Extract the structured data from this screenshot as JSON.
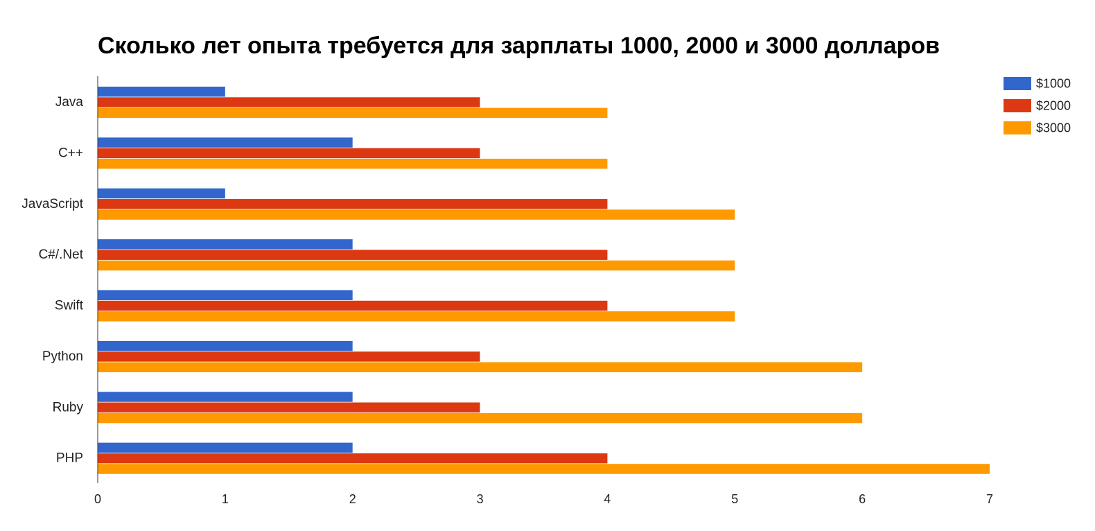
{
  "chart_data": {
    "type": "bar",
    "orientation": "horizontal",
    "title": "Сколько лет опыта требуется для зарплаты 1000, 2000 и 3000 долларов",
    "xlabel": "",
    "ylabel": "",
    "xlim": [
      0,
      7
    ],
    "x_ticks": [
      "0",
      "1",
      "2",
      "3",
      "4",
      "5",
      "6",
      "7"
    ],
    "grid": false,
    "legend_position": "top-right",
    "categories": [
      "Java",
      "C++",
      "JavaScript",
      "C#/.Net",
      "Swift",
      "Python",
      "Ruby",
      "PHP"
    ],
    "series": [
      {
        "name": "$1000",
        "color": "#3366cc",
        "values": [
          1,
          2,
          1,
          2,
          2,
          2,
          2,
          2
        ]
      },
      {
        "name": "$2000",
        "color": "#dc3912",
        "values": [
          3,
          3,
          4,
          4,
          4,
          3,
          3,
          4
        ]
      },
      {
        "name": "$3000",
        "color": "#ff9900",
        "values": [
          4,
          4,
          5,
          5,
          5,
          6,
          6,
          7
        ]
      }
    ]
  }
}
